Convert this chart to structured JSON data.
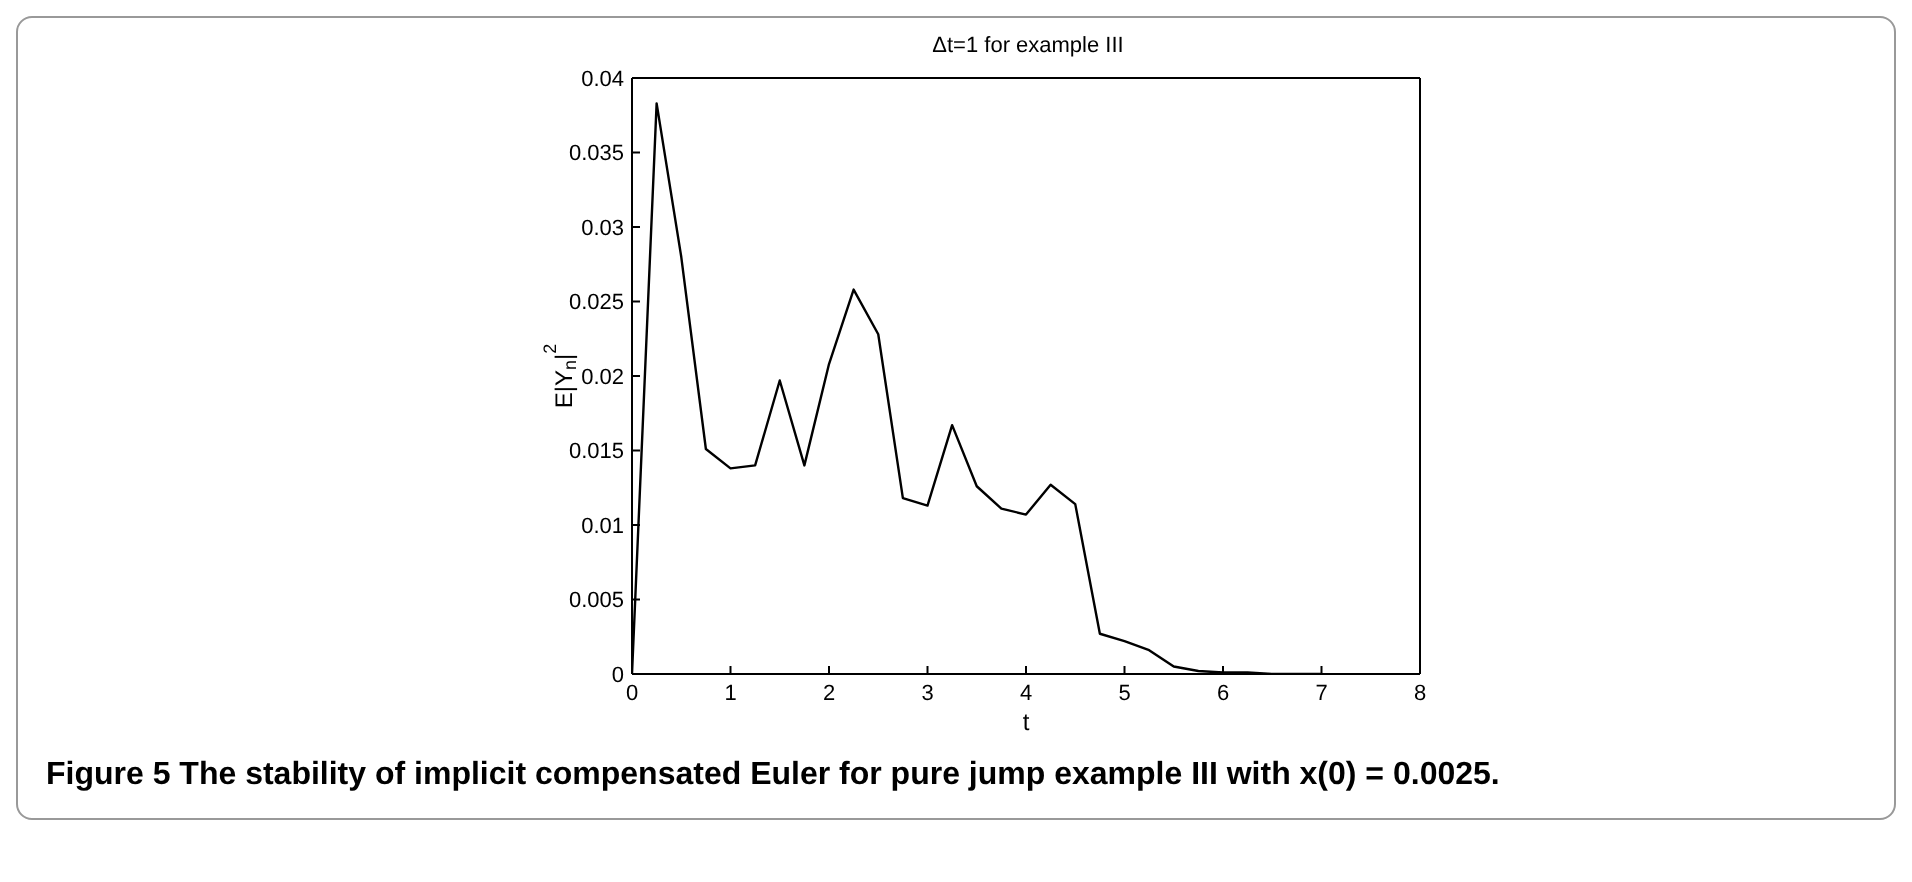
{
  "chart_data": {
    "type": "line",
    "title": "Δt=1 for example III",
    "xlabel": "t",
    "ylabel": "E|Y$_{n}$|$^{2}$",
    "x": [
      0,
      0.25,
      0.5,
      0.75,
      1,
      1.25,
      1.5,
      1.75,
      2,
      2.25,
      2.5,
      2.75,
      3,
      3.25,
      3.5,
      3.75,
      4,
      4.25,
      4.5,
      4.75,
      5,
      5.25,
      5.5,
      5.75,
      6,
      6.25,
      6.5,
      6.75,
      7
    ],
    "series": [
      {
        "color": "#000000",
        "values": [
          0,
          0.0383,
          0.028,
          0.0151,
          0.0138,
          0.014,
          0.0197,
          0.014,
          0.0208,
          0.0258,
          0.0228,
          0.0118,
          0.0113,
          0.0167,
          0.0126,
          0.0111,
          0.0107,
          0.0127,
          0.0114,
          0.0027,
          0.0022,
          0.0016,
          0.0005,
          0.0002,
          0.0001,
          0.0001,
          0,
          0,
          0
        ]
      }
    ],
    "xlim": [
      0,
      8
    ],
    "xticks": [
      0,
      1,
      2,
      3,
      4,
      5,
      6,
      7,
      8
    ],
    "ylim": [
      0,
      0.04
    ],
    "yticks": [
      0,
      0.005,
      0.01,
      0.015,
      0.02,
      0.025,
      0.03,
      0.035,
      0.04
    ],
    "grid": false,
    "legend": false,
    "marker": "none",
    "line_style": "solid",
    "annotations": [
      "Figure 5  The stability of implicit compensated Euler for pure jump example III with x(0) = 0.0025."
    ]
  }
}
